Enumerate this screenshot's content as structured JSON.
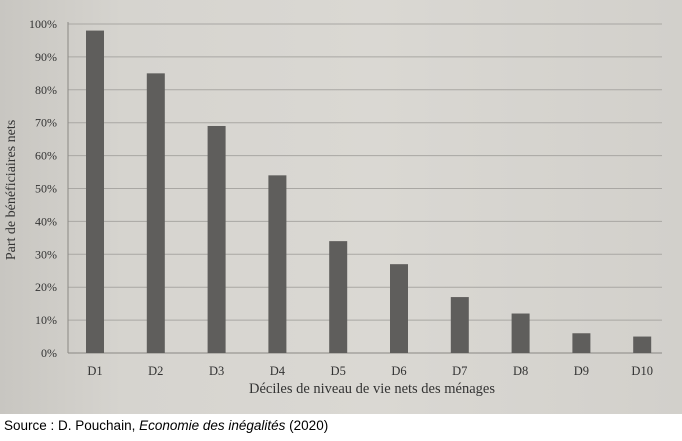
{
  "chart_data": {
    "type": "bar",
    "categories": [
      "D1",
      "D2",
      "D3",
      "D4",
      "D5",
      "D6",
      "D7",
      "D8",
      "D9",
      "D10"
    ],
    "values": [
      98,
      85,
      69,
      54,
      34,
      27,
      17,
      12,
      6,
      5
    ],
    "ylabel": "Part de bénéficiaires nets",
    "xlabel": "Déciles de niveau de vie nets des ménages",
    "yticks": [
      "0%",
      "10%",
      "20%",
      "30%",
      "40%",
      "50%",
      "60%",
      "70%",
      "80%",
      "90%",
      "100%"
    ],
    "ylim": [
      0,
      100
    ],
    "grid": true,
    "bar_color": "#5f5e5c"
  },
  "caption": {
    "prefix": "Source : D. Pouchain, ",
    "title": "Economie des inégalités",
    "suffix": " (2020)"
  }
}
